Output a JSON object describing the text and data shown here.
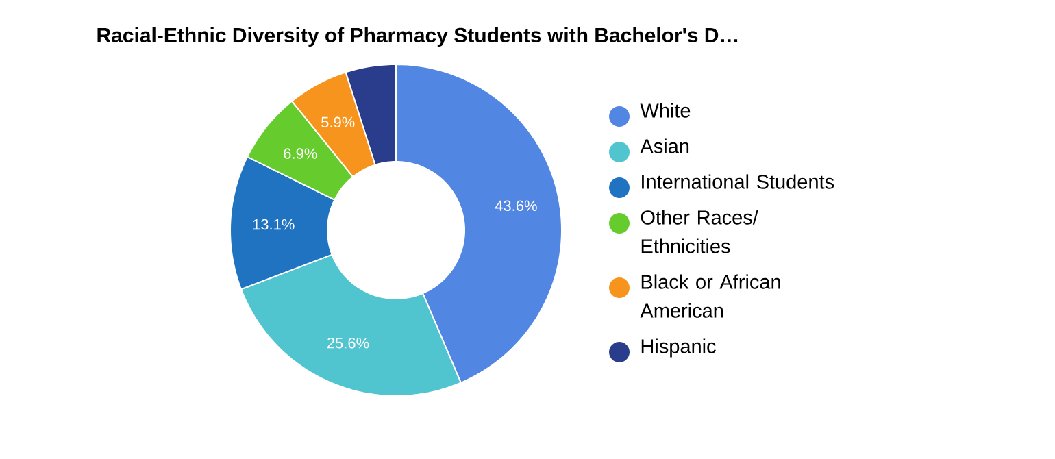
{
  "chart_data": {
    "type": "donut",
    "title": "Racial-Ethnic Diversity of Pharmacy Students with Bachelor's D…",
    "categories": [
      "White",
      "Asian",
      "International Students",
      "Other Races/ Ethnicities",
      "Black or African American",
      "Hispanic"
    ],
    "values": [
      43.6,
      25.6,
      13.1,
      6.9,
      5.9,
      4.9
    ],
    "value_labels": [
      "43.6%",
      "25.6%",
      "13.1%",
      "6.9%",
      "5.9%",
      null
    ],
    "colors": [
      "#5286e3",
      "#50c4cf",
      "#1f73c1",
      "#66cc2e",
      "#f7941d",
      "#2a3c8c"
    ],
    "legend": "right"
  }
}
